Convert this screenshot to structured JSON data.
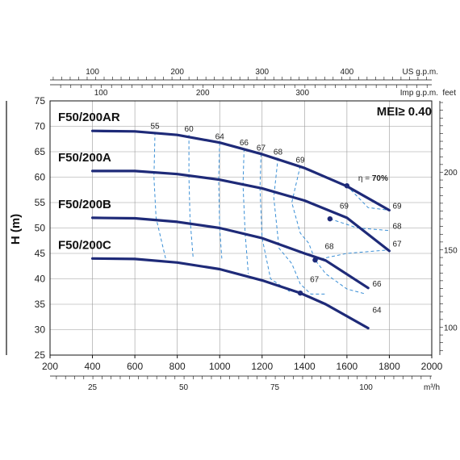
{
  "chart_data": {
    "type": "line",
    "title": "",
    "mei_label": "MEI≥ 0.40",
    "ylabel": "H (m)",
    "ylim": [
      25,
      75
    ],
    "yticks": [
      25,
      30,
      35,
      40,
      45,
      50,
      55,
      60,
      65,
      70,
      75
    ],
    "xlim": [
      200,
      2000
    ],
    "xticks": [
      200,
      400,
      600,
      800,
      1000,
      1200,
      1400,
      1600,
      1800,
      2000
    ],
    "grid": true,
    "top_axis_1": {
      "unit": "US g.p.m.",
      "ticks": [
        {
          "label": "100",
          "x": 400
        },
        {
          "label": "200",
          "x": 800
        },
        {
          "label": "300",
          "x": 1200
        },
        {
          "label": "400",
          "x": 1600
        }
      ]
    },
    "top_axis_2": {
      "unit": "Imp g.p.m.",
      "ticks": [
        {
          "label": "100",
          "x": 440
        },
        {
          "label": "200",
          "x": 920
        },
        {
          "label": "300",
          "x": 1390
        }
      ]
    },
    "bottom_axis_2": {
      "unit": "m³/h",
      "ticks": [
        {
          "label": "25",
          "x": 400
        },
        {
          "label": "50",
          "x": 830
        },
        {
          "label": "75",
          "x": 1260
        },
        {
          "label": "100",
          "x": 1690
        }
      ]
    },
    "right_axis": {
      "unit": "feet",
      "ticks": [
        {
          "label": "100",
          "y": 30.5
        },
        {
          "label": "150",
          "y": 45.7
        },
        {
          "label": "200",
          "y": 61.0
        }
      ]
    },
    "series": [
      {
        "name": "F50/200AR",
        "x": [
          400,
          600,
          800,
          1000,
          1200,
          1400,
          1600,
          1800
        ],
        "y": [
          69.1,
          69.0,
          68.3,
          66.8,
          64.5,
          61.8,
          58.2,
          53.5
        ],
        "eta_marker": {
          "x": 1600,
          "y": 58.3,
          "label": "η = ",
          "value": "70%"
        }
      },
      {
        "name": "F50/200A",
        "x": [
          400,
          600,
          800,
          1000,
          1200,
          1400,
          1600,
          1800
        ],
        "y": [
          61.2,
          61.2,
          60.6,
          59.5,
          57.8,
          55.4,
          52.0,
          45.5
        ],
        "eta_marker": {
          "x": 1520,
          "y": 51.8
        }
      },
      {
        "name": "F50/200B",
        "x": [
          400,
          600,
          800,
          1000,
          1200,
          1400,
          1500,
          1700
        ],
        "y": [
          52.0,
          51.9,
          51.2,
          50.0,
          48.0,
          45.0,
          43.6,
          38.2
        ],
        "eta_marker": {
          "x": 1450,
          "y": 43.7
        }
      },
      {
        "name": "F50/200C",
        "x": [
          400,
          600,
          800,
          1000,
          1200,
          1380,
          1500,
          1700
        ],
        "y": [
          44.0,
          43.9,
          43.2,
          41.9,
          39.7,
          37.2,
          35.0,
          30.3
        ],
        "eta_marker": {
          "x": 1380,
          "y": 37.2
        }
      }
    ],
    "efficiency_lines": [
      {
        "label": "55",
        "points": [
          [
            695,
            68.9
          ],
          [
            690,
            60
          ],
          [
            700,
            52
          ],
          [
            745,
            44
          ]
        ]
      },
      {
        "label": "60",
        "points": [
          [
            855,
            68.3
          ],
          [
            855,
            60
          ],
          [
            860,
            52
          ],
          [
            875,
            44
          ]
        ]
      },
      {
        "label": "64",
        "points": [
          [
            1000,
            66.8
          ],
          [
            995,
            59.5
          ],
          [
            1000,
            50
          ],
          [
            1010,
            44
          ]
        ]
      },
      {
        "label": "66",
        "points": [
          [
            1115,
            65.6
          ],
          [
            1110,
            58.5
          ],
          [
            1120,
            49
          ],
          [
            1135,
            41
          ]
        ]
      },
      {
        "label": "67",
        "points": [
          [
            1195,
            64.6
          ],
          [
            1190,
            57.8
          ],
          [
            1200,
            48
          ],
          [
            1240,
            40
          ],
          [
            1330,
            37.5
          ]
        ]
      },
      {
        "label": "68",
        "points": [
          [
            1275,
            63.8
          ],
          [
            1255,
            56
          ],
          [
            1280,
            46
          ],
          [
            1340,
            43
          ],
          [
            1380,
            39
          ],
          [
            1430,
            37
          ],
          [
            1500,
            37
          ]
        ]
      },
      {
        "label": "69",
        "points": [
          [
            1380,
            62.2
          ],
          [
            1340,
            55
          ],
          [
            1380,
            49
          ],
          [
            1420,
            47
          ],
          [
            1450,
            43.7
          ],
          [
            1500,
            41
          ],
          [
            1600,
            38
          ],
          [
            1690,
            37
          ]
        ]
      }
    ],
    "right_eff_labels": [
      {
        "label": "69",
        "x": 1800,
        "y": 53.5
      },
      {
        "label": "68",
        "x": 1800,
        "y": 49.5
      },
      {
        "label": "67",
        "x": 1800,
        "y": 46.0
      },
      {
        "label": "66",
        "x": 1705,
        "y": 38.2
      },
      {
        "label": "64",
        "x": 1705,
        "y": 33.0
      }
    ],
    "inline_eff_labels": [
      {
        "label": "69",
        "x": 1520,
        "y": 53.2
      },
      {
        "label": "68",
        "x": 1450,
        "y": 45.2
      },
      {
        "label": "67",
        "x": 1380,
        "y": 38.7
      }
    ],
    "colors": {
      "curve": "#1e2a78",
      "eff": "#3a8fd6",
      "grid": "#9a9a9a"
    }
  }
}
